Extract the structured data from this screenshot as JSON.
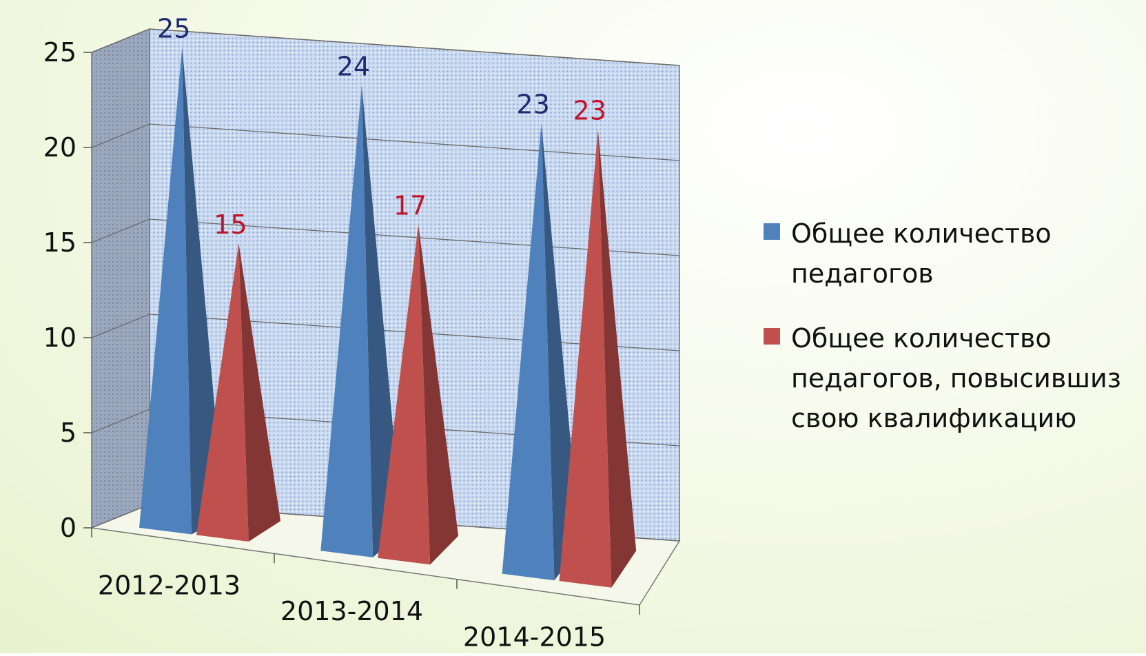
{
  "chart_data": {
    "type": "pyramid3d",
    "categories": [
      "2012-2013",
      "2013-2014",
      "2014-2015"
    ],
    "series": [
      {
        "name": "Общее количество педагогов",
        "color": "#4f81bd",
        "label_color": "#1f2a70",
        "values": [
          25,
          24,
          23
        ]
      },
      {
        "name": "Общее количество педагогов, повысившиз свою квалификацию",
        "color": "#c0504d",
        "label_color": "#c0142a",
        "values": [
          15,
          17,
          23
        ]
      }
    ],
    "ylim": [
      0,
      25
    ],
    "yticks": [
      0,
      5,
      10,
      15,
      20,
      25
    ],
    "grid": true,
    "legend": "right"
  }
}
